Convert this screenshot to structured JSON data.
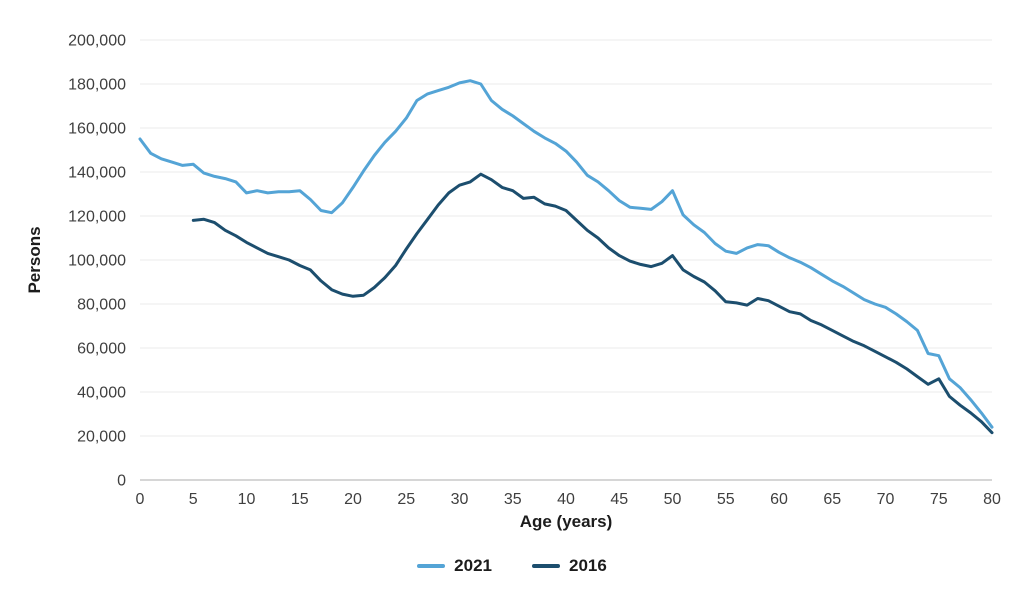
{
  "chart_data": {
    "type": "line",
    "title": "",
    "xlabel": "Age (years)",
    "ylabel": "Persons",
    "xlim": [
      0,
      80
    ],
    "ylim": [
      0,
      200000
    ],
    "grid": true,
    "legend_position": "bottom",
    "grid_color": "#ebebeb",
    "axis_color": "#c8c8c8",
    "tick_text_color": "#3f3f3f",
    "x_ticks": [
      0,
      5,
      10,
      15,
      20,
      25,
      30,
      35,
      40,
      45,
      50,
      55,
      60,
      65,
      70,
      75,
      80
    ],
    "y_ticks": [
      0,
      20000,
      40000,
      60000,
      80000,
      100000,
      120000,
      140000,
      160000,
      180000,
      200000
    ],
    "y_tick_labels": [
      "0",
      "20,000",
      "40,000",
      "60,000",
      "80,000",
      "100,000",
      "120,000",
      "140,000",
      "160,000",
      "180,000",
      "200,000"
    ],
    "series": [
      {
        "name": "2021",
        "color": "#54A4D6",
        "x_start": 0,
        "values": [
          155000,
          148500,
          146000,
          144500,
          143000,
          143500,
          139500,
          138000,
          137000,
          135500,
          130500,
          131500,
          130500,
          131000,
          131000,
          131500,
          127500,
          122500,
          121500,
          126000,
          133000,
          140500,
          147500,
          153500,
          158500,
          164500,
          172500,
          175500,
          177000,
          178500,
          180500,
          181500,
          180000,
          172500,
          168500,
          165500,
          162000,
          158500,
          155500,
          153000,
          149500,
          144500,
          138500,
          135500,
          131500,
          127000,
          124000,
          123500,
          123000,
          126500,
          131500,
          120500,
          116000,
          112500,
          107500,
          104000,
          103000,
          105500,
          107000,
          106500,
          103500,
          101000,
          99000,
          96500,
          93500,
          90500,
          88000,
          85000,
          82000,
          80000,
          78500,
          75500,
          72000,
          68000,
          57500,
          56500,
          46000,
          42000,
          36500,
          30500,
          24000
        ]
      },
      {
        "name": "2016",
        "color": "#1C4E6E",
        "x_start": 5,
        "values": [
          118000,
          118500,
          117000,
          113500,
          111000,
          108000,
          105500,
          103000,
          101500,
          100000,
          97500,
          95500,
          90500,
          86500,
          84500,
          83500,
          84000,
          87500,
          92000,
          97500,
          105000,
          112000,
          118500,
          125000,
          130500,
          134000,
          135500,
          139000,
          136500,
          133000,
          131500,
          128000,
          128500,
          125500,
          124500,
          122500,
          118000,
          113500,
          110000,
          105500,
          102000,
          99500,
          98000,
          97000,
          98500,
          102000,
          95500,
          92500,
          90000,
          86000,
          81000,
          80500,
          79500,
          82500,
          81500,
          79000,
          76500,
          75500,
          72500,
          70500,
          68000,
          65500,
          63000,
          61000,
          58500,
          56000,
          53500,
          50500,
          47000,
          43500,
          46000,
          38000,
          34000,
          30500,
          26500,
          21500
        ]
      }
    ]
  }
}
